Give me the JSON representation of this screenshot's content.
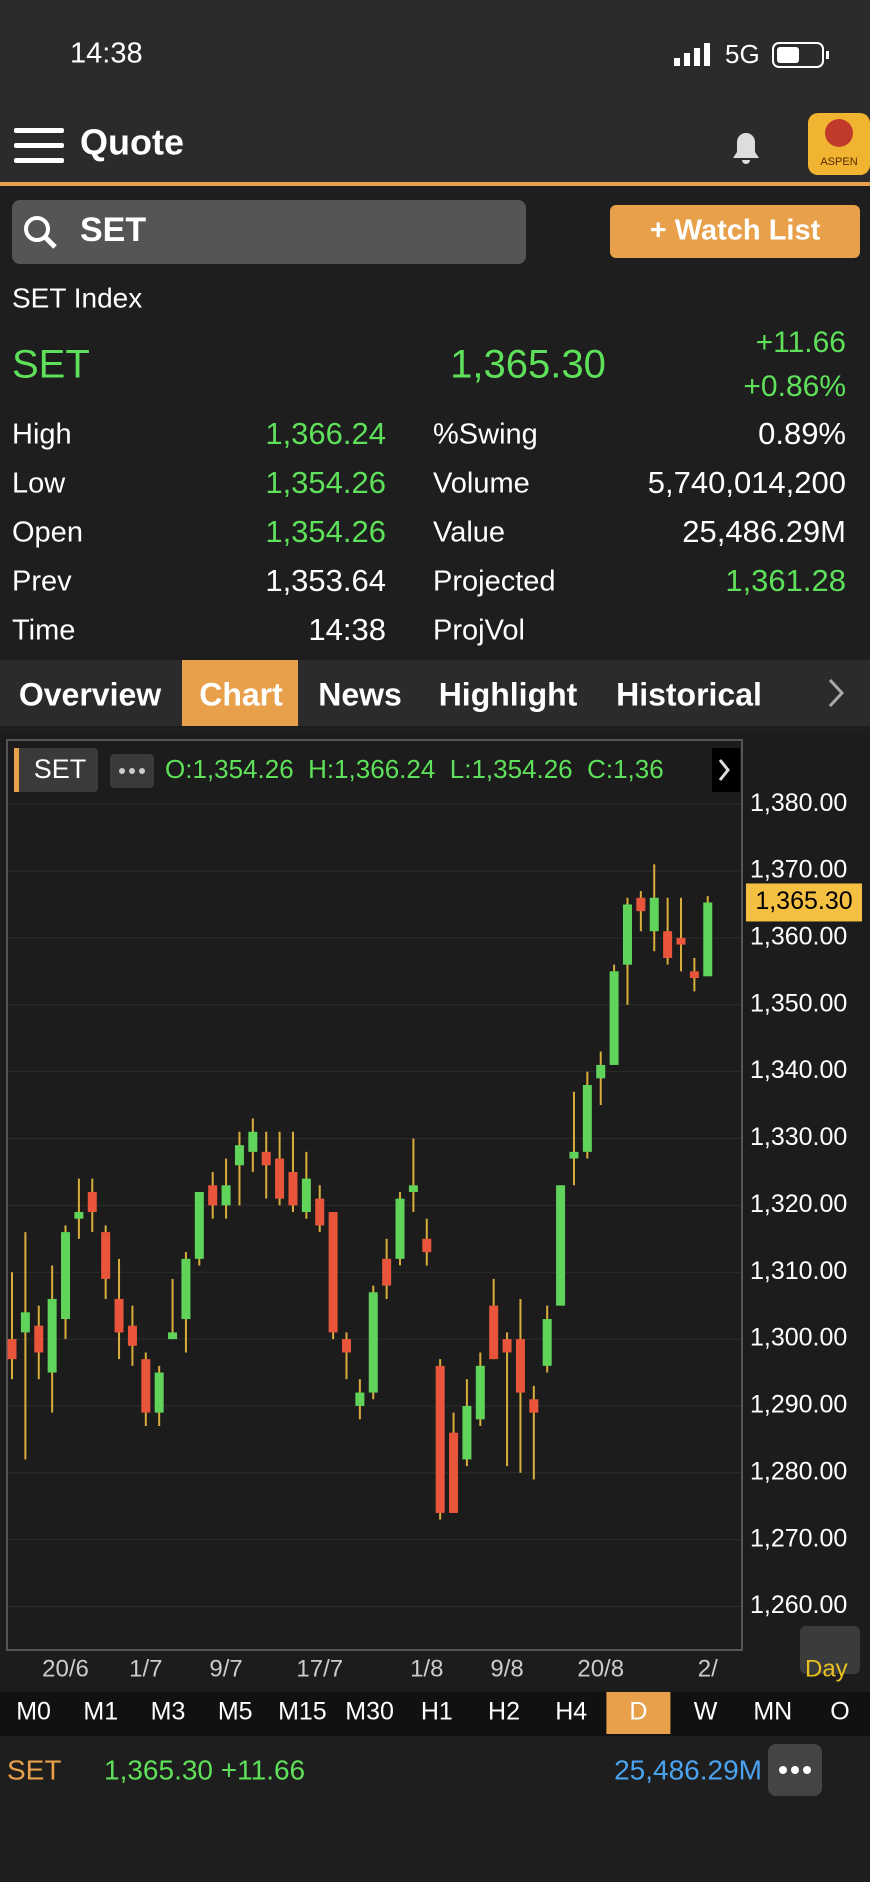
{
  "status_bar": {
    "time": "14:38",
    "network": "5G"
  },
  "header": {
    "title": "Quote",
    "logo": "ASPEN"
  },
  "search": {
    "query": "SET",
    "button": "+ Watch List"
  },
  "quote": {
    "name": "SET Index",
    "symbol": "SET",
    "last": "1,365.30",
    "change": "+11.66",
    "change_pct": "+0.86%",
    "color": "#5fe05a",
    "stats_left": [
      {
        "label": "High",
        "value": "1,366.24",
        "color": "#5fe05a"
      },
      {
        "label": "Low",
        "value": "1,354.26",
        "color": "#5fe05a"
      },
      {
        "label": "Open",
        "value": "1,354.26",
        "color": "#5fe05a"
      },
      {
        "label": "Prev",
        "value": "1,353.64",
        "color": "#ffffff"
      },
      {
        "label": "Time",
        "value": "14:38",
        "color": "#ffffff"
      }
    ],
    "stats_right": [
      {
        "label": "%Swing",
        "value": "0.89%",
        "color": "#ffffff"
      },
      {
        "label": "Volume",
        "value": "5,740,014,200",
        "color": "#ffffff"
      },
      {
        "label": "Value",
        "value": "25,486.29M",
        "color": "#ffffff"
      },
      {
        "label": "Projected",
        "value": "1,361.28",
        "color": "#5fe05a"
      },
      {
        "label": "ProjVol"
      }
    ]
  },
  "tabs": {
    "items": [
      "Overview",
      "Chart",
      "News",
      "Highlight",
      "Historical"
    ],
    "active": 1
  },
  "chart_data": {
    "type": "candlestick",
    "ohlc_text": "O:1,354.26  H:1,366.24  L:1,354.26  C:1,36",
    "last_label": "1,365.30",
    "period_label": "Day",
    "categories": [
      null,
      null,
      null,
      null,
      "20/6",
      null,
      null,
      null,
      null,
      null,
      "1/7",
      null,
      null,
      null,
      null,
      null,
      "9/7",
      null,
      null,
      null,
      null,
      null,
      null,
      "17/7",
      null,
      null,
      null,
      null,
      null,
      null,
      null,
      "1/8",
      null,
      null,
      null,
      null,
      null,
      "9/8",
      null,
      null,
      null,
      null,
      null,
      null,
      "20/8",
      null,
      null,
      null,
      null,
      null,
      null,
      null,
      "2/"
    ],
    "series": [
      {
        "name": "SET",
        "up_color": "#5fd35a",
        "down_color": "#e8553a",
        "wick_color": "#d9ad3c",
        "values": [
          [
            1300,
            1310,
            1294,
            1297
          ],
          [
            1301,
            1316,
            1282,
            1304
          ],
          [
            1302,
            1305,
            1294,
            1298
          ],
          [
            1295,
            1311,
            1289,
            1306
          ],
          [
            1303,
            1317,
            1300,
            1316
          ],
          [
            1318,
            1324,
            1315,
            1319
          ],
          [
            1322,
            1324,
            1316,
            1319
          ],
          [
            1316,
            1317,
            1306,
            1309
          ],
          [
            1306,
            1312,
            1297,
            1301
          ],
          [
            1302,
            1305,
            1296,
            1299
          ],
          [
            1297,
            1298,
            1287,
            1289
          ],
          [
            1289,
            1296,
            1287,
            1295
          ],
          [
            1300,
            1309,
            1300,
            1301
          ],
          [
            1303,
            1313,
            1298,
            1312
          ],
          [
            1312,
            1322,
            1311,
            1322
          ],
          [
            1323,
            1325,
            1318,
            1320
          ],
          [
            1320,
            1327,
            1318,
            1323
          ],
          [
            1326,
            1331,
            1320,
            1329
          ],
          [
            1328,
            1333,
            1325,
            1331
          ],
          [
            1328,
            1331,
            1321,
            1326
          ],
          [
            1327,
            1331,
            1320,
            1321
          ],
          [
            1325,
            1331,
            1319,
            1320
          ],
          [
            1319,
            1328,
            1318,
            1324
          ],
          [
            1321,
            1323,
            1316,
            1317
          ],
          [
            1319,
            1319,
            1300,
            1301
          ],
          [
            1300,
            1301,
            1294,
            1298
          ],
          [
            1290,
            1294,
            1288,
            1292
          ],
          [
            1292,
            1308,
            1291,
            1307
          ],
          [
            1312,
            1315,
            1306,
            1308
          ],
          [
            1312,
            1322,
            1311,
            1321
          ],
          [
            1322,
            1330,
            1319,
            1323
          ],
          [
            1315,
            1318,
            1311,
            1313
          ],
          [
            1296,
            1297,
            1273,
            1274
          ],
          [
            1286,
            1289,
            1274,
            1274
          ],
          [
            1282,
            1294,
            1281,
            1290
          ],
          [
            1288,
            1298,
            1287,
            1296
          ],
          [
            1305,
            1309,
            1297,
            1297
          ],
          [
            1300,
            1301,
            1281,
            1298
          ],
          [
            1300,
            1306,
            1280,
            1292
          ],
          [
            1291,
            1293,
            1279,
            1289
          ],
          [
            1296,
            1305,
            1295,
            1303
          ],
          [
            1305,
            1323,
            1305,
            1323
          ],
          [
            1327,
            1337,
            1323,
            1328
          ],
          [
            1328,
            1340,
            1327,
            1338
          ],
          [
            1339,
            1343,
            1335,
            1341
          ],
          [
            1341,
            1356,
            1341,
            1355
          ],
          [
            1356,
            1366,
            1350,
            1365
          ],
          [
            1366,
            1367,
            1361,
            1364
          ],
          [
            1361,
            1371,
            1358,
            1366
          ],
          [
            1361,
            1366,
            1356,
            1357
          ],
          [
            1360,
            1366,
            1355,
            1359
          ],
          [
            1355,
            1357,
            1352,
            1354
          ],
          [
            1354.26,
            1366.24,
            1354.26,
            1365.3
          ]
        ]
      }
    ],
    "ylim": [
      1253.5,
      1389
    ],
    "yticks": [
      {
        "value": 1260,
        "label": "1,260.00"
      },
      {
        "value": 1270,
        "label": "1,270.00"
      },
      {
        "value": 1280,
        "label": "1,280.00"
      },
      {
        "value": 1290,
        "label": "1,290.00"
      },
      {
        "value": 1300,
        "label": "1,300.00"
      },
      {
        "value": 1310,
        "label": "1,310.00"
      },
      {
        "value": 1320,
        "label": "1,320.00"
      },
      {
        "value": 1330,
        "label": "1,330.00"
      },
      {
        "value": 1340,
        "label": "1,340.00"
      },
      {
        "value": 1350,
        "label": "1,350.00"
      },
      {
        "value": 1360,
        "label": "1,360.00"
      },
      {
        "value": 1370,
        "label": "1,370.00"
      },
      {
        "value": 1380,
        "label": "1,380.00"
      }
    ],
    "grid": true
  },
  "periods": {
    "items": [
      "M0",
      "M1",
      "M3",
      "M5",
      "M15",
      "M30",
      "H1",
      "H2",
      "H4",
      "D",
      "W",
      "MN",
      "O"
    ],
    "active": 9
  },
  "footer": {
    "symbol": "SET",
    "quote": "1,365.30 +11.66",
    "value": "25,486.29M"
  }
}
